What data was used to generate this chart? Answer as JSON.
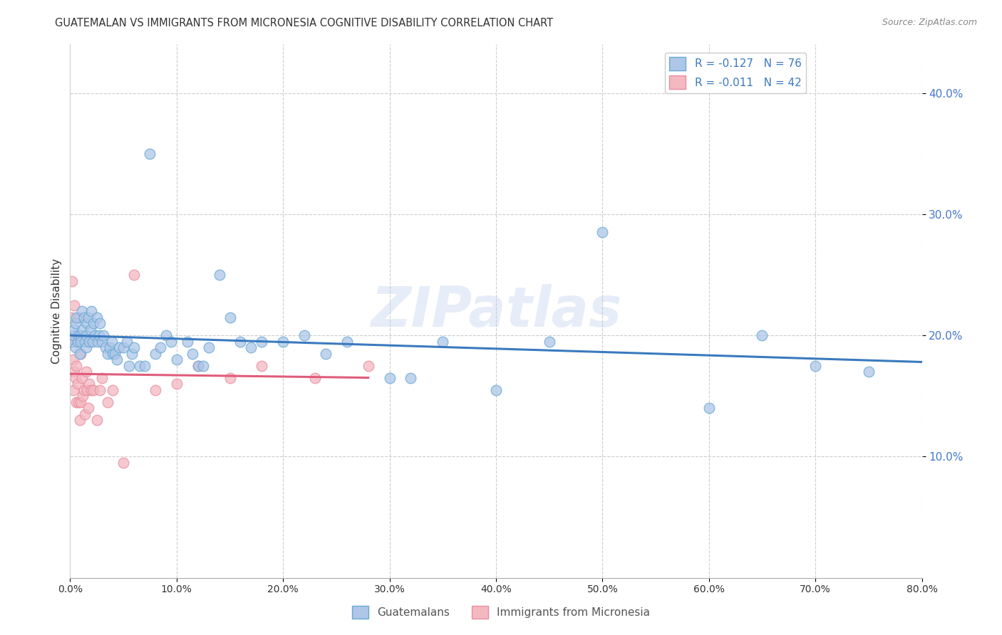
{
  "title": "GUATEMALAN VS IMMIGRANTS FROM MICRONESIA COGNITIVE DISABILITY CORRELATION CHART",
  "source": "Source: ZipAtlas.com",
  "ylabel": "Cognitive Disability",
  "watermark": "ZIPatlas",
  "legend1_label": "R = -0.127   N = 76",
  "legend2_label": "R = -0.011   N = 42",
  "legend1_color": "#aec6e8",
  "legend2_color": "#f4b8c1",
  "trend1_color": "#3a7abf",
  "trend2_color": "#e05c7a",
  "dot1_color": "#aec6e8",
  "dot2_color": "#f4b8c1",
  "dot1_edge": "#6aaad4",
  "dot2_edge": "#e88fa0",
  "xlim": [
    0.0,
    0.8
  ],
  "ylim": [
    0.0,
    0.44
  ],
  "xticks": [
    0.0,
    0.1,
    0.2,
    0.3,
    0.4,
    0.5,
    0.6,
    0.7,
    0.8
  ],
  "yticks": [
    0.1,
    0.2,
    0.3,
    0.4
  ],
  "background_color": "#ffffff",
  "grid_color": "#cccccc",
  "blue_x": [
    0.002,
    0.003,
    0.004,
    0.005,
    0.005,
    0.006,
    0.007,
    0.008,
    0.009,
    0.01,
    0.01,
    0.011,
    0.012,
    0.013,
    0.014,
    0.015,
    0.015,
    0.016,
    0.017,
    0.018,
    0.019,
    0.02,
    0.021,
    0.022,
    0.023,
    0.025,
    0.026,
    0.027,
    0.028,
    0.03,
    0.031,
    0.033,
    0.035,
    0.037,
    0.039,
    0.04,
    0.042,
    0.044,
    0.046,
    0.05,
    0.053,
    0.055,
    0.058,
    0.06,
    0.065,
    0.07,
    0.075,
    0.08,
    0.085,
    0.09,
    0.095,
    0.1,
    0.11,
    0.115,
    0.12,
    0.125,
    0.13,
    0.14,
    0.15,
    0.16,
    0.17,
    0.18,
    0.2,
    0.22,
    0.24,
    0.26,
    0.3,
    0.32,
    0.35,
    0.4,
    0.45,
    0.5,
    0.6,
    0.65,
    0.7,
    0.75
  ],
  "blue_y": [
    0.195,
    0.2,
    0.205,
    0.19,
    0.21,
    0.215,
    0.195,
    0.2,
    0.185,
    0.2,
    0.195,
    0.22,
    0.205,
    0.215,
    0.195,
    0.2,
    0.19,
    0.21,
    0.215,
    0.195,
    0.205,
    0.22,
    0.195,
    0.21,
    0.2,
    0.215,
    0.195,
    0.2,
    0.21,
    0.195,
    0.2,
    0.19,
    0.185,
    0.19,
    0.195,
    0.185,
    0.185,
    0.18,
    0.19,
    0.19,
    0.195,
    0.175,
    0.185,
    0.19,
    0.175,
    0.175,
    0.35,
    0.185,
    0.19,
    0.2,
    0.195,
    0.18,
    0.195,
    0.185,
    0.175,
    0.175,
    0.19,
    0.25,
    0.215,
    0.195,
    0.19,
    0.195,
    0.195,
    0.2,
    0.185,
    0.195,
    0.165,
    0.165,
    0.195,
    0.155,
    0.195,
    0.285,
    0.14,
    0.2,
    0.175,
    0.17
  ],
  "pink_x": [
    0.001,
    0.002,
    0.002,
    0.003,
    0.003,
    0.004,
    0.004,
    0.005,
    0.005,
    0.006,
    0.006,
    0.007,
    0.007,
    0.008,
    0.008,
    0.009,
    0.01,
    0.01,
    0.011,
    0.012,
    0.013,
    0.014,
    0.015,
    0.016,
    0.017,
    0.018,
    0.02,
    0.022,
    0.025,
    0.028,
    0.03,
    0.035,
    0.04,
    0.05,
    0.06,
    0.08,
    0.1,
    0.12,
    0.15,
    0.18,
    0.23,
    0.28
  ],
  "pink_y": [
    0.215,
    0.195,
    0.245,
    0.18,
    0.155,
    0.17,
    0.225,
    0.165,
    0.195,
    0.175,
    0.145,
    0.2,
    0.16,
    0.215,
    0.145,
    0.13,
    0.185,
    0.145,
    0.165,
    0.15,
    0.155,
    0.135,
    0.17,
    0.155,
    0.14,
    0.16,
    0.155,
    0.155,
    0.13,
    0.155,
    0.165,
    0.145,
    0.155,
    0.095,
    0.25,
    0.155,
    0.16,
    0.175,
    0.165,
    0.175,
    0.165,
    0.175
  ]
}
